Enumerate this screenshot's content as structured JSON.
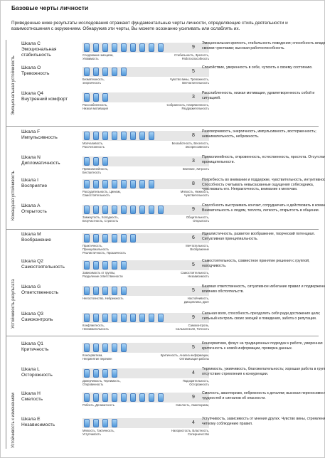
{
  "title": "Базовые черты личности",
  "intro": "Приведенные ниже результаты исследования отражают фундаментальные черты личности, определяющие стиль деятельности и взаимоотношения с окружением. Обнаружив эти черты, Вы можете осознанно усиливать или ослаблять их.",
  "groups": [
    {
      "label": "Эмоциональная устойчивость"
    },
    {
      "label": "Командная устойчивость"
    },
    {
      "label": "Устойчивость результата"
    },
    {
      "label": "Устойчивость к изменениям"
    }
  ],
  "rows": [
    {
      "name": "Шкала С\nЭмоциональная стабильность",
      "score": "9",
      "left": "Следование эмоциям,\nУязвимость",
      "right": "Стабильность, Зрелость,\nРаботоспособность",
      "desc": "Эмоциональная крепость, стабильность поведения; способность владеть своими чувствами; высокая работоспособность."
    },
    {
      "name": "Шкала О\nТревожность",
      "score": "5",
      "left": "Безмятежность,\nэнергичность",
      "right": "Чувство вины, Тревожность,\nВпечатлительность",
      "desc": "Спокойствие, уверенность в себе, чуткость к своему состоянию."
    },
    {
      "name": "Шкала Q4\nВнутренний комфорт",
      "score": "3",
      "left": "Расслабленность,\nНизкая мотивация",
      "right": "Собранность, Напряженность,\nРаздражительность",
      "desc": "Расслабленность, низкая мотивация, удовлетворенность собой и ситуацией."
    },
    {
      "name": "Шкала F\nИмпульсивность",
      "score": "8",
      "left": "Молчаливость,\nРассчитанность",
      "right": "Беззаботность, Веселость,\nЭкспрессивность",
      "desc": "Разговорчивость, энергичность, импульсивность, восторженность; невнимательность, небрежность."
    },
    {
      "name": "Шкала N\nДипломатичность",
      "score": "3",
      "left": "Прямолинейность,\nБестактность",
      "right": "Влияние, Хитрость",
      "desc": "Прямолинейность, откровенность, естественность, простота. Отсутствие проницательности."
    },
    {
      "name": "Шкала I\nВосприятие",
      "score": "8",
      "left": "Рассудительность, Цинизм,\nСамостоятельность",
      "right": "Мягкость, Нежность,\nЧувствительность",
      "desc": "Потребность во внимании и поддержке, чувствительность, интуитивность. Способность считывать невысказанные ощущения собеседника, чувствовать его. Непрактичность, внимание к мелочам."
    },
    {
      "name": "Шкала А\nОткрытость",
      "score": "9",
      "left": "Замкнутость, Холодность,\nБезучастность, Строгость",
      "right": "Общительность,\nОткрытость",
      "desc": "Способность выстраивать контакт, сотрудничать и действовать в команде. Внимательность к людям, теплота, легкость, открытость в общении."
    },
    {
      "name": "Шкала М\nВоображение",
      "score": "6",
      "left": "Практичность,\nПринципиальность\nРеалистичность, Прозаичность",
      "right": "Мечтательность,\nВоображение",
      "desc": "Идеалистичность, развитое воображение, творческий потенциал. Ситуативная принципиальность."
    },
    {
      "name": "Шкала Q2\nСамостоятельность",
      "score": "5",
      "left": "Зависимость от группы,\nРазделение ответственности",
      "right": "Самостоятельность,\nНезависимость",
      "desc": "Самостоятельность, совместное принятие решения с группой, находчивость."
    },
    {
      "name": "Шкала G\nОтветственность",
      "score": "5",
      "left": "Непостоянство, Небрежность",
      "right": "Настойчивость,\nДисциплина, Долг",
      "desc": "Базовая ответственность, ситуативное избегание правил и подверженность влиянию обстоятельств."
    },
    {
      "name": "Шкала Q3\nСамоконтроль",
      "score": "9",
      "left": "Конфликтность,\nНевнимательность",
      "right": "Самоконтроль,\nСильная воля, Точность",
      "desc": "Сильная воля, способность преодолеть себя ради достижения цели; сильный контроль своих эмоций и поведения, забота о репутации."
    },
    {
      "name": "Шкала Q1\nКритичность",
      "score": "5",
      "left": "Консерватизм,\nНепринятие перемен",
      "right": "Критичность, Анализ информации,\nОптимизация работы",
      "desc": "Консерватизм, фокус на традиционных подходах к работе, умеренная критичность к новой информации, проверка данных."
    },
    {
      "name": "Шкала L\nОсторожность",
      "score": "4",
      "left": "Доверчивость, Терпимость,\nОткровенность",
      "right": "Подозрительность,\nОсторожность",
      "desc": "Терпимость, уживчивость, благожелательность; хорошая работа в группе, отсутствие стремления к конкуренции."
    },
    {
      "name": "Шкала Н\nСмелость",
      "score": "9",
      "left": "Робость, Деликатность",
      "right": "Смелость, Авантюризм,",
      "desc": "Смелость, авантюризм, небрежность к деталям; высокая переносимость трудностей и сигналов об опасности."
    },
    {
      "name": "Шкала Е\nНезависимость",
      "score": "4",
      "left": "Мягкость, Тактичность,\nУступчивость",
      "right": "Напористость, Властность,\nСоперничество",
      "desc": "Уступчивость, зависимость от мнения других. Чувство вины, стремление к четкому соблюдению правил."
    }
  ]
}
